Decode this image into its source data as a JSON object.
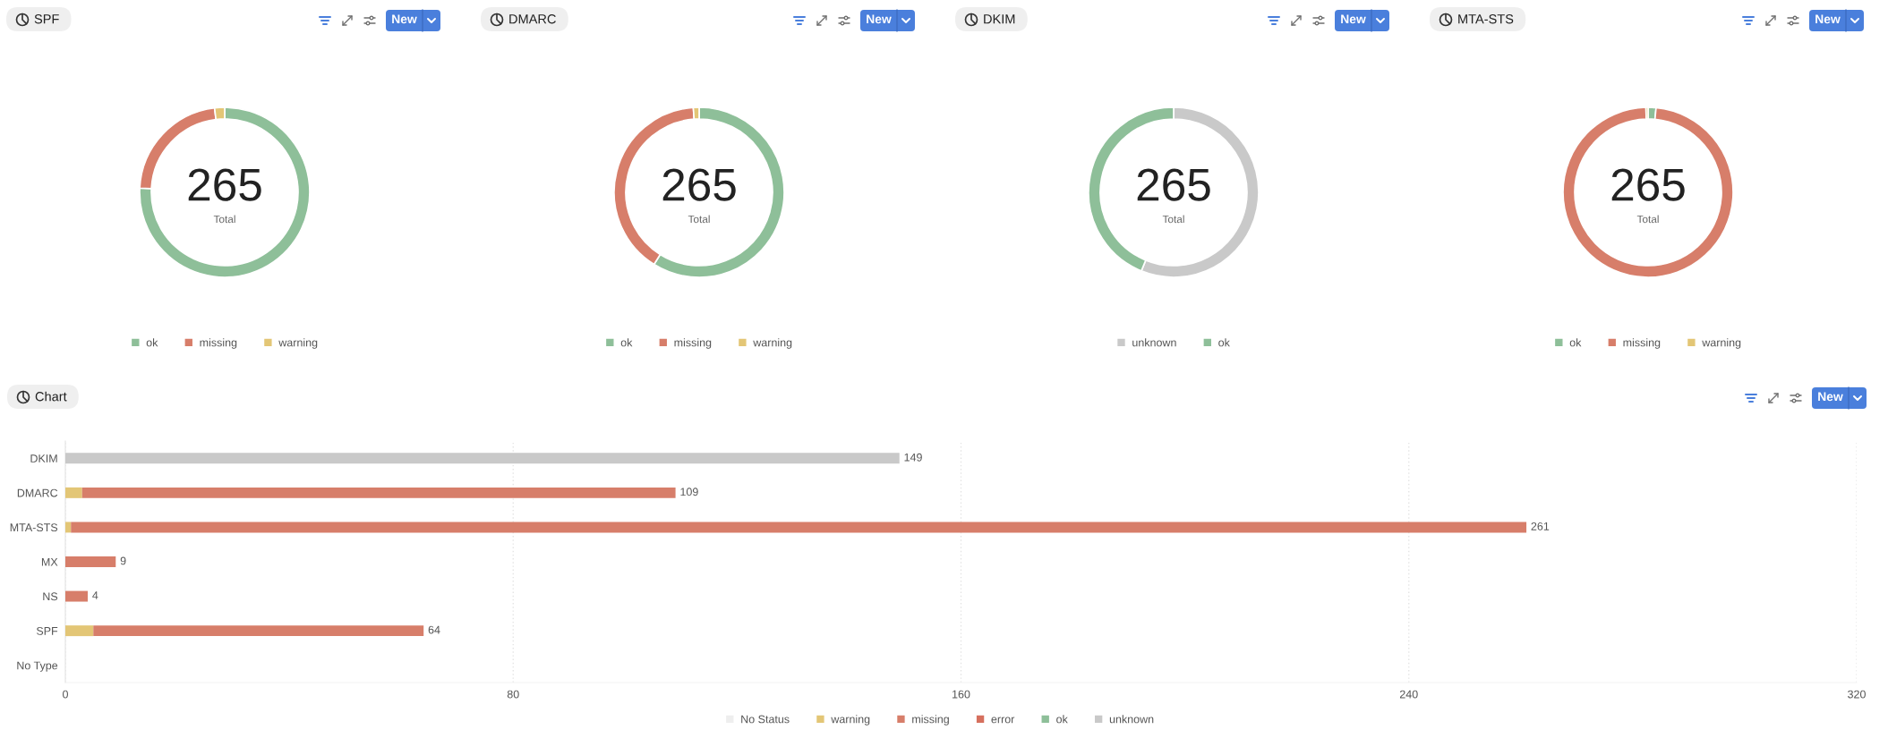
{
  "chart_data": [
    {
      "type": "donut",
      "title": "SPF",
      "categories": [
        "ok",
        "missing",
        "warning"
      ],
      "values": [
        75.8,
        22.3,
        1.9
      ],
      "colors": [
        "#8ebf99",
        "#d77e6a",
        "#e3c676"
      ],
      "legend": "bottom",
      "annotations": [
        "265",
        "Total",
        "New"
      ]
    },
    {
      "type": "donut",
      "title": "DMARC",
      "categories": [
        "ok",
        "missing",
        "warning"
      ],
      "values": [
        58.9,
        40.0,
        1.1
      ],
      "colors": [
        "#8ebf99",
        "#d77e6a",
        "#e3c676"
      ],
      "legend": "bottom",
      "annotations": [
        "265",
        "Total",
        "New"
      ]
    },
    {
      "type": "donut",
      "title": "DKIM",
      "categories": [
        "unknown",
        "ok"
      ],
      "values": [
        56.2,
        43.8
      ],
      "colors": [
        "#c9c9c9",
        "#8ebf99"
      ],
      "legend": "bottom",
      "annotations": [
        "265",
        "Total",
        "New"
      ]
    },
    {
      "type": "donut",
      "title": "MTA-STS",
      "categories": [
        "ok",
        "missing",
        "warning"
      ],
      "values": [
        1.5,
        98.1,
        0.4
      ],
      "colors": [
        "#8ebf99",
        "#d77e6a",
        "#e3c676"
      ],
      "legend": "bottom",
      "annotations": [
        "265",
        "Total",
        "New"
      ]
    },
    {
      "type": "bar",
      "title": "Chart",
      "orientation": "horizontal",
      "stacked": true,
      "categories": [
        "DKIM",
        "DMARC",
        "MTA-STS",
        "MX",
        "NS",
        "SPF",
        "No Type"
      ],
      "series": [
        {
          "name": "No Status",
          "color": "#eeeeee",
          "values": [
            null,
            null,
            null,
            null,
            null,
            null,
            null
          ]
        },
        {
          "name": "warning",
          "color": "#e3c676",
          "values": [
            null,
            3,
            1,
            null,
            null,
            5,
            null
          ]
        },
        {
          "name": "missing",
          "color": "#d77e6a",
          "values": [
            null,
            106,
            260,
            9,
            4,
            59,
            null
          ]
        },
        {
          "name": "error",
          "color": "#d6705e",
          "values": [
            null,
            null,
            null,
            null,
            null,
            null,
            null
          ]
        },
        {
          "name": "ok",
          "color": "#8ebf99",
          "values": [
            null,
            null,
            null,
            null,
            null,
            null,
            null
          ]
        },
        {
          "name": "unknown",
          "color": "#c9c9c9",
          "values": [
            149,
            null,
            null,
            null,
            null,
            null,
            null
          ]
        }
      ],
      "totals": [
        "149",
        "109",
        "261",
        "9",
        "4",
        "64",
        null
      ],
      "xlim": [
        0,
        320
      ],
      "xticks": [
        0,
        80,
        160,
        240,
        320
      ],
      "grid": "x",
      "legend": "bottom",
      "annotations": [
        "New"
      ]
    }
  ]
}
